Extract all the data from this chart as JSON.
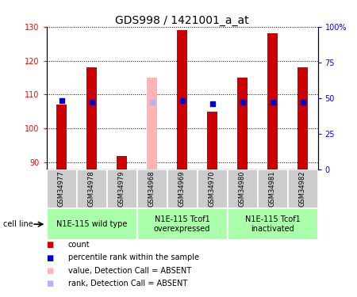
{
  "title": "GDS998 / 1421001_a_at",
  "samples": [
    "GSM34977",
    "GSM34978",
    "GSM34979",
    "GSM34968",
    "GSM34969",
    "GSM34970",
    "GSM34980",
    "GSM34981",
    "GSM34982"
  ],
  "count_values": [
    107,
    118,
    92,
    null,
    129,
    105,
    115,
    128,
    118
  ],
  "absent_value": 115,
  "absent_index": 3,
  "percentile_values": [
    48,
    47,
    null,
    null,
    48,
    46,
    47,
    47,
    47
  ],
  "absent_percentile": 47,
  "absent_pct_index": 3,
  "ylim_left": [
    88,
    130
  ],
  "ylim_right": [
    0,
    100
  ],
  "yticks_left": [
    90,
    100,
    110,
    120,
    130
  ],
  "yticks_right": [
    0,
    25,
    50,
    75,
    100
  ],
  "bar_width": 0.35,
  "count_color": "#cc0000",
  "absent_bar_color": "#ffb3b3",
  "percentile_color": "#0000cc",
  "absent_pct_color": "#b3b3ff",
  "group_labels": [
    "N1E-115 wild type",
    "N1E-115 Tcof1\noverexpressed",
    "N1E-115 Tcof1\ninactivated"
  ],
  "group_ranges": [
    [
      0,
      2
    ],
    [
      3,
      5
    ],
    [
      6,
      8
    ]
  ],
  "group_bg_color": "#aaffaa",
  "sample_bg_color": "#cccccc",
  "legend_items": [
    {
      "color": "#cc0000",
      "label": "count"
    },
    {
      "color": "#0000cc",
      "label": "percentile rank within the sample"
    },
    {
      "color": "#ffb3b3",
      "label": "value, Detection Call = ABSENT"
    },
    {
      "color": "#b3b3ff",
      "label": "rank, Detection Call = ABSENT"
    }
  ],
  "cell_line_label": "cell line",
  "title_fontsize": 10,
  "tick_fontsize": 7,
  "sample_fontsize": 6,
  "group_fontsize": 7,
  "legend_fontsize": 7
}
